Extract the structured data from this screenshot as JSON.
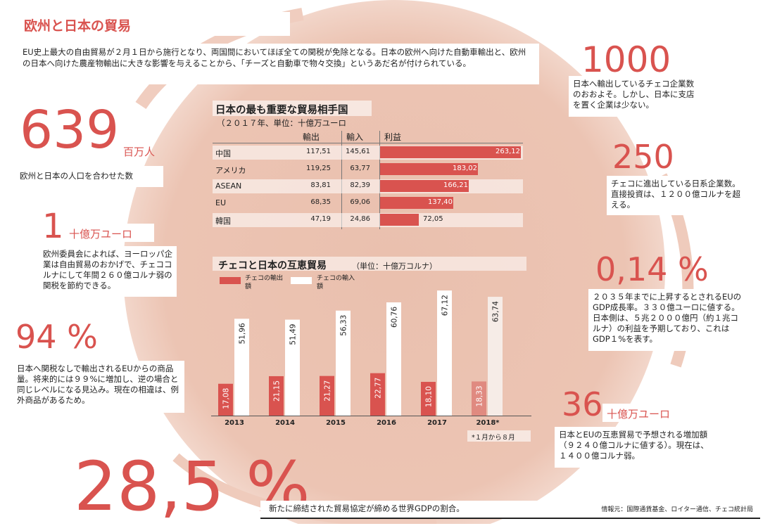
{
  "header": {
    "title": "欧州と日本の貿易",
    "intro": "EU史上最大の自由貿易が２月１日から施行となり、両国間においてほぼ全ての関税が免除となる。日本の欧州へ向けた自動車輸出と、欧州の日本へ向けた農産物輸出に大きな影響を与えることから、「チーズと自動車で物々交換」というあだ名が付けられている。"
  },
  "colors": {
    "accent": "#d9534f",
    "bg_circle": "#ecc2b0",
    "bar_export": "#d9534f",
    "bar_import": "#ffffff"
  },
  "stats": {
    "population": {
      "value": "639",
      "unit": "百万人",
      "text": "欧州と日本の人口を合わせた数"
    },
    "tariff": {
      "value": "1",
      "unit": "十億万ユーロ",
      "text": "欧州委員会によれば、ヨーロッパ企業は自由貿易のおかげで、チェココルナにして年間２６０億コルナ弱の関税を節約できる。"
    },
    "duty_free": {
      "value": "94 %",
      "text": "日本へ関税なしで輸出されるEUからの商品量。将来的には９９%に増加し、逆の場合と同じレベルになる見込み。現在の相違は、例外商品があるため。"
    },
    "gdp_share": {
      "value": "28,5 %",
      "text": "新たに締結された貿易協定が締める世界GDPの割合。"
    },
    "czech_firms": {
      "value": "1000",
      "text": "日本へ輸出しているチェコ企業数のおおよそ。しかし、日本に支店を置く企業は少ない。"
    },
    "japanese_firms": {
      "value": "250",
      "text": "チェコに進出している日系企業数。直接投資は、１２００億コルナを超える。"
    },
    "gdp_growth": {
      "value": "0,14 %",
      "text": "２０３５年までに上昇するとされるEUのGDP成長率。３３０億ユーロに値する。日本側は、５兆２０００億円（約１兆コルナ）の利益を予期しており、これはGDP１%を表す。"
    },
    "mutual_trade": {
      "value": "36",
      "unit": "十億万ユーロ",
      "text": "日本とEUの互恵貿易で予想される増加額（９２４０億コルナに値する）。現在は、１４００億コルナ弱。"
    }
  },
  "source": "情報元：国際通貨基金、ロイター通信、チェコ統計局",
  "chart_data": [
    {
      "type": "table",
      "title": "日本の最も重要な貿易相手国",
      "subtitle": "（２０１７年、単位：十億万ユーロ",
      "columns": [
        "輸出",
        "輸入",
        "利益"
      ],
      "rows": [
        {
          "name": "中国",
          "export": "117,51",
          "import": "145,61",
          "profit": "263,12",
          "profit_value": 263.12
        },
        {
          "name": "アメリカ",
          "export": "119,25",
          "import": "63,77",
          "profit": "183,02",
          "profit_value": 183.02
        },
        {
          "name": "ASEAN",
          "export": "83,81",
          "import": "82,39",
          "profit": "166,21",
          "profit_value": 166.21
        },
        {
          "name": "EU",
          "export": "68,35",
          "import": "69,06",
          "profit": "137,40",
          "profit_value": 137.4
        },
        {
          "name": "韓国",
          "export": "47,19",
          "import": "24,86",
          "profit": "72,05",
          "profit_value": 72.05
        }
      ]
    },
    {
      "type": "bar",
      "title": "チェコと日本の互恵貿易",
      "unit_note": "（単位：十億万コルナ）",
      "legend": [
        "チェコの輸出額",
        "チェコの輸入額"
      ],
      "categories": [
        "2013",
        "2014",
        "2015",
        "2016",
        "2017",
        "2018*"
      ],
      "series": [
        {
          "name": "チェコの輸出額",
          "values": [
            17.08,
            21.15,
            21.27,
            22.77,
            18.1,
            18.33
          ],
          "labels": [
            "17,08",
            "21,15",
            "21,27",
            "22,77",
            "18,10",
            "18,33"
          ]
        },
        {
          "name": "チェコの輸入額",
          "values": [
            51.96,
            51.49,
            56.33,
            60.76,
            67.12,
            63.74
          ],
          "labels": [
            "51,96",
            "51,49",
            "56,33",
            "60,76",
            "67,12",
            "63,74"
          ]
        }
      ],
      "footnote": "*１月から８月"
    }
  ]
}
